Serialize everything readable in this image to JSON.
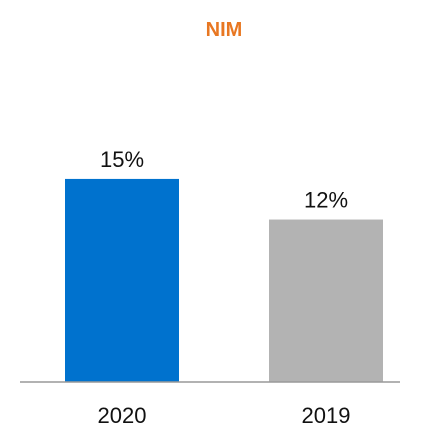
{
  "chart_data": {
    "type": "bar",
    "title": "NIM",
    "categories": [
      "2020",
      "2019"
    ],
    "values": [
      15,
      12
    ],
    "value_labels": [
      "15%",
      "12%"
    ],
    "unit": "%",
    "ylim": [
      0,
      26
    ],
    "grid": false,
    "legend": "none",
    "colors": {
      "title": "#E87722",
      "bars": [
        "#0072CE",
        "#B3B3B3"
      ],
      "axis": "#999999"
    }
  }
}
